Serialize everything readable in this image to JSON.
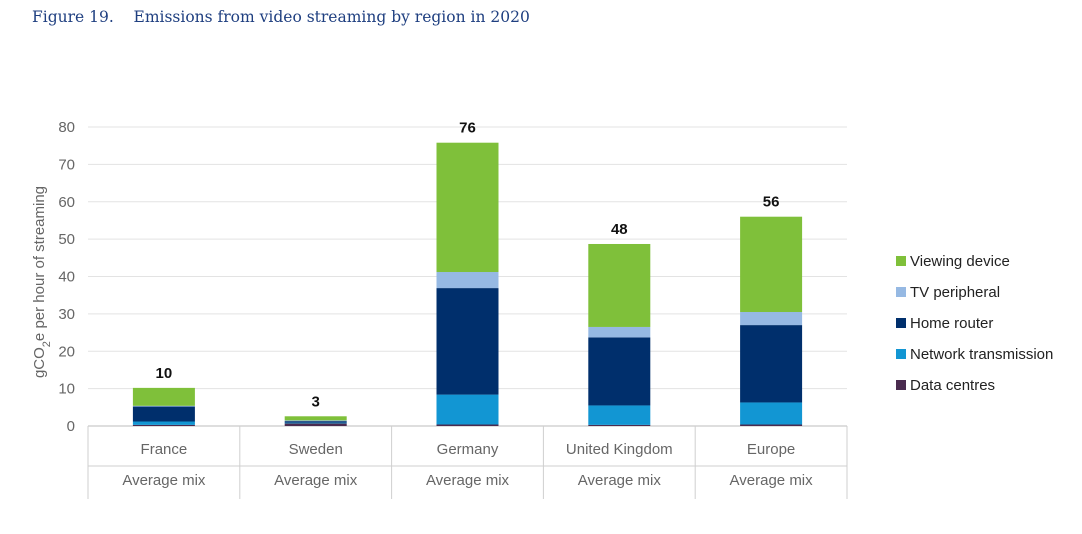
{
  "figure": {
    "number": "Figure 19.",
    "caption": "Emissions from video streaming by region in 2020"
  },
  "chart_data": {
    "type": "bar",
    "stacked": true,
    "title": "Emissions from video streaming by region in 2020",
    "ylabel": {
      "pre": "gCO",
      "sub": "2",
      "post": "e per hour of streaming"
    },
    "ylim": [
      0,
      80
    ],
    "yticks": [
      0,
      10,
      20,
      30,
      40,
      50,
      60,
      70,
      80
    ],
    "grid": true,
    "legend_position": "right",
    "categories": [
      "France",
      "Sweden",
      "Germany",
      "United Kingdom",
      "Europe"
    ],
    "sublabels": [
      "Average mix",
      "Average mix",
      "Average mix",
      "Average mix",
      "Average mix"
    ],
    "totals": [
      "10",
      "3",
      "76",
      "48",
      "56"
    ],
    "series": [
      {
        "name": "Data centres",
        "color": "#4a2b4f",
        "values": [
          0.3,
          0.7,
          0.4,
          0.3,
          0.4
        ]
      },
      {
        "name": "Network transmission",
        "color": "#1296d3",
        "values": [
          0.9,
          0.2,
          8.0,
          5.2,
          5.9
        ]
      },
      {
        "name": "Home router",
        "color": "#002f6c",
        "values": [
          4.0,
          0.4,
          28.5,
          18.2,
          20.7
        ]
      },
      {
        "name": "TV peripheral",
        "color": "#96b9e3",
        "values": [
          0.2,
          0.2,
          4.3,
          2.8,
          3.5
        ]
      },
      {
        "name": "Viewing device",
        "color": "#7fc03a",
        "values": [
          4.8,
          1.1,
          34.6,
          22.2,
          25.5
        ]
      }
    ]
  }
}
